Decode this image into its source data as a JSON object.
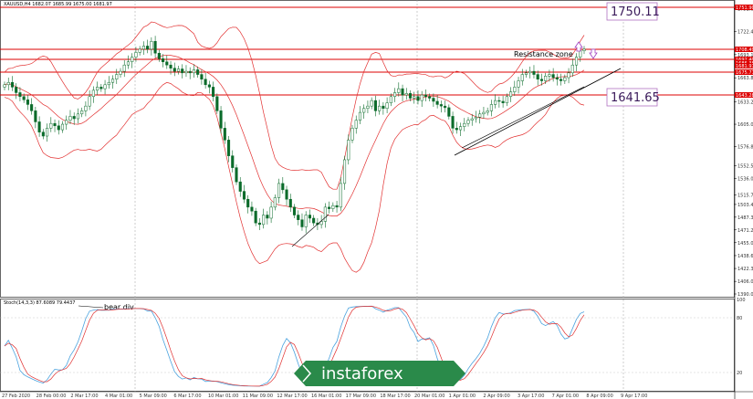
{
  "header": {
    "symbol_line": "XAUUSD,H4 1682.07 1685.99 1675.00 1681.97"
  },
  "indicator": {
    "label": "Stoch(14,3,3) 87.6089 79.4437"
  },
  "annotations": {
    "resistance": "Resistance zone",
    "bear_div": "bear div"
  },
  "levels": {
    "upper": "1750.11",
    "lower": "1641.65"
  },
  "logo": {
    "text": "instaforex"
  },
  "colors": {
    "candle": "#0a6b2a",
    "band": "#e23030",
    "level_line": "#dd0000",
    "stoch_main": "#4aa3df",
    "stoch_signal": "#e03030",
    "arrow": "#a040c0"
  },
  "chart_data": {
    "type": "candlestick",
    "x_ticks": [
      "27 Feb 2020",
      "28 Feb 00:00",
      "2 Mar 17:00",
      "4 Mar 01:00",
      "5 Mar 09:00",
      "6 Mar 17:00",
      "10 Mar 01:00",
      "11 Mar 09:00",
      "12 Mar 17:00",
      "16 Mar 01:00",
      "17 Mar 09:00",
      "18 Mar 17:00",
      "20 Mar 01:00",
      "1 Apr 01:00",
      "2 Apr 09:00",
      "3 Apr 17:00",
      "7 Apr 01:00",
      "8 Apr 09:00",
      "9 Apr 17:00"
    ],
    "y_ticks": [
      1751.6,
      1722.4,
      1693.1,
      1663.8,
      1633.25,
      1605.0,
      1576.8,
      1552.5,
      1536.0,
      1515.7,
      1503.4,
      1487.3,
      1471.2,
      1455.0,
      1438.6,
      1422.3,
      1406.0,
      1390.0
    ],
    "price_labels": [
      "1751.90",
      "1708.49",
      "1692.40",
      "1686.38",
      "1681.97",
      "1675.77",
      "1643.28"
    ],
    "ylim": [
      1390,
      1760
    ],
    "closes": [
      1655,
      1658,
      1652,
      1645,
      1640,
      1636,
      1630,
      1622,
      1608,
      1595,
      1590,
      1600,
      1606,
      1603,
      1598,
      1605,
      1610,
      1615,
      1612,
      1618,
      1622,
      1628,
      1640,
      1648,
      1652,
      1650,
      1655,
      1658,
      1662,
      1668,
      1672,
      1680,
      1684,
      1690,
      1696,
      1700,
      1704,
      1700,
      1710,
      1695,
      1688,
      1684,
      1680,
      1676,
      1672,
      1675,
      1670,
      1672,
      1670,
      1674,
      1668,
      1662,
      1655,
      1652,
      1640,
      1622,
      1600,
      1585,
      1565,
      1550,
      1532,
      1520,
      1510,
      1500,
      1495,
      1480,
      1478,
      1490,
      1486,
      1500,
      1512,
      1530,
      1522,
      1510,
      1500,
      1490,
      1484,
      1475,
      1490,
      1486,
      1480,
      1478,
      1482,
      1500,
      1498,
      1502,
      1500,
      1530,
      1560,
      1585,
      1600,
      1610,
      1620,
      1625,
      1628,
      1635,
      1622,
      1628,
      1625,
      1632,
      1640,
      1645,
      1650,
      1642,
      1644,
      1638,
      1640,
      1635,
      1642,
      1640,
      1638,
      1634,
      1630,
      1628,
      1626,
      1615,
      1600,
      1598,
      1602,
      1606,
      1610,
      1612,
      1614,
      1618,
      1620,
      1622,
      1630,
      1635,
      1634,
      1632,
      1640,
      1646,
      1652,
      1660,
      1668,
      1670,
      1672,
      1668,
      1662,
      1660,
      1666,
      1668,
      1664,
      1662,
      1660,
      1664,
      1670,
      1680,
      1690,
      1698,
      1700
    ]
  }
}
